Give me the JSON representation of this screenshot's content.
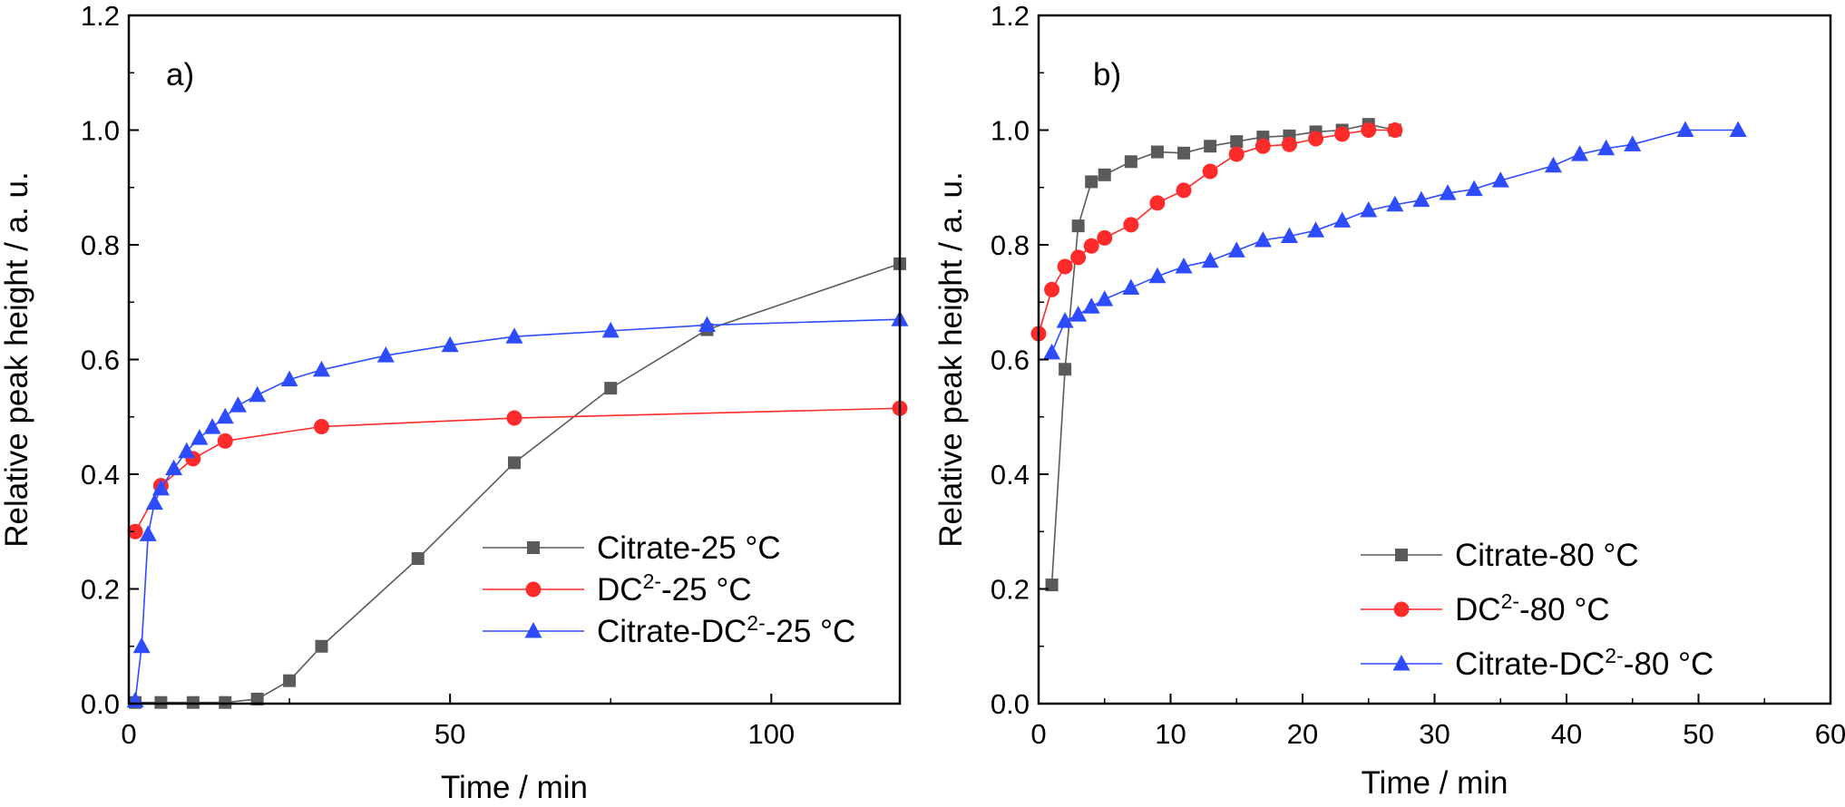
{
  "chart_data": [
    {
      "type": "line",
      "panel_label": "a)",
      "xlabel": "Time / min",
      "ylabel": "Relative peak height / a. u.",
      "xlim": [
        0,
        120
      ],
      "ylim": [
        0,
        1.2
      ],
      "xticks": [
        "0",
        "50",
        "100"
      ],
      "xtick_values": [
        0,
        50,
        100
      ],
      "yticks": [
        "0.0",
        "0.2",
        "0.4",
        "0.6",
        "0.8",
        "1.0",
        "1.2"
      ],
      "ytick_values": [
        0,
        0.2,
        0.4,
        0.6,
        0.8,
        1.0,
        1.2
      ],
      "grid": false,
      "legend_position": "lower-right",
      "series": [
        {
          "name": "Citrate-25 °C",
          "legend": {
            "base": "Citrate-25 °C",
            "sup": "",
            "tail": ""
          },
          "color": "#5a5a5a",
          "marker": "square",
          "x": [
            1,
            5,
            10,
            15,
            20,
            25,
            30,
            45,
            60,
            75,
            90,
            120
          ],
          "y": [
            0.002,
            0.002,
            0.002,
            0.002,
            0.008,
            0.04,
            0.1,
            0.253,
            0.42,
            0.55,
            0.652,
            0.767
          ]
        },
        {
          "name": "DC2--25 °C",
          "legend": {
            "base": "DC",
            "sup": "2-",
            "tail": "-25 °C"
          },
          "color": "#ff2a2a",
          "marker": "circle",
          "x": [
            1,
            5,
            10,
            15,
            30,
            60,
            120
          ],
          "y": [
            0.3,
            0.38,
            0.427,
            0.458,
            0.483,
            0.498,
            0.515
          ]
        },
        {
          "name": "Citrate-DC2--25 °C",
          "legend": {
            "base": "Citrate-DC",
            "sup": "2-",
            "tail": "-25 °C"
          },
          "color": "#2e4cff",
          "marker": "triangle",
          "x": [
            1,
            2,
            3,
            4,
            5,
            7,
            9,
            11,
            13,
            15,
            17,
            20,
            25,
            30,
            40,
            50,
            60,
            75,
            90,
            120
          ],
          "y": [
            0.005,
            0.1,
            0.295,
            0.35,
            0.375,
            0.41,
            0.44,
            0.463,
            0.482,
            0.5,
            0.52,
            0.538,
            0.565,
            0.582,
            0.607,
            0.625,
            0.64,
            0.65,
            0.66,
            0.67
          ]
        }
      ]
    },
    {
      "type": "line",
      "panel_label": "b)",
      "xlabel": "Time / min",
      "ylabel": "Relative peak height / a. u.",
      "xlim": [
        0,
        60
      ],
      "ylim": [
        0,
        1.2
      ],
      "xticks": [
        "0",
        "10",
        "20",
        "30",
        "40",
        "50",
        "60"
      ],
      "xtick_values": [
        0,
        10,
        20,
        30,
        40,
        50,
        60
      ],
      "yticks": [
        "0.0",
        "0.2",
        "0.4",
        "0.6",
        "0.8",
        "1.0",
        "1.2"
      ],
      "ytick_values": [
        0,
        0.2,
        0.4,
        0.6,
        0.8,
        1.0,
        1.2
      ],
      "grid": false,
      "legend_position": "lower-right",
      "series": [
        {
          "name": "Citrate-80 °C",
          "legend": {
            "base": "Citrate-80 °C",
            "sup": "",
            "tail": ""
          },
          "color": "#5a5a5a",
          "marker": "square",
          "x": [
            1,
            2,
            3,
            4,
            5,
            7,
            9,
            11,
            13,
            15,
            17,
            19,
            21,
            23,
            25,
            27
          ],
          "y": [
            0.207,
            0.583,
            0.833,
            0.91,
            0.922,
            0.945,
            0.962,
            0.96,
            0.972,
            0.98,
            0.988,
            0.99,
            0.997,
            1.0,
            1.01,
            1.0
          ]
        },
        {
          "name": "DC2--80 °C",
          "legend": {
            "base": "DC",
            "sup": "2-",
            "tail": "-80 °C"
          },
          "color": "#ff2a2a",
          "marker": "circle",
          "x": [
            0,
            1,
            2,
            3,
            4,
            5,
            7,
            9,
            11,
            13,
            15,
            17,
            19,
            21,
            23,
            25,
            27
          ],
          "y": [
            0.645,
            0.722,
            0.762,
            0.778,
            0.798,
            0.812,
            0.835,
            0.873,
            0.895,
            0.928,
            0.958,
            0.972,
            0.975,
            0.985,
            0.993,
            1.0,
            1.0
          ]
        },
        {
          "name": "Citrate-DC2--80 °C",
          "legend": {
            "base": "Citrate-DC",
            "sup": "2-",
            "tail": "-80 °C"
          },
          "color": "#2e4cff",
          "marker": "triangle",
          "x": [
            1,
            2,
            3,
            4,
            5,
            7,
            9,
            11,
            13,
            15,
            17,
            19,
            21,
            23,
            25,
            27,
            29,
            31,
            33,
            35,
            39,
            41,
            43,
            45,
            49,
            53
          ],
          "y": [
            0.612,
            0.667,
            0.678,
            0.692,
            0.705,
            0.725,
            0.745,
            0.762,
            0.772,
            0.79,
            0.808,
            0.815,
            0.825,
            0.842,
            0.86,
            0.87,
            0.878,
            0.89,
            0.897,
            0.912,
            0.938,
            0.958,
            0.968,
            0.975,
            1.0,
            1.0
          ]
        }
      ]
    }
  ]
}
